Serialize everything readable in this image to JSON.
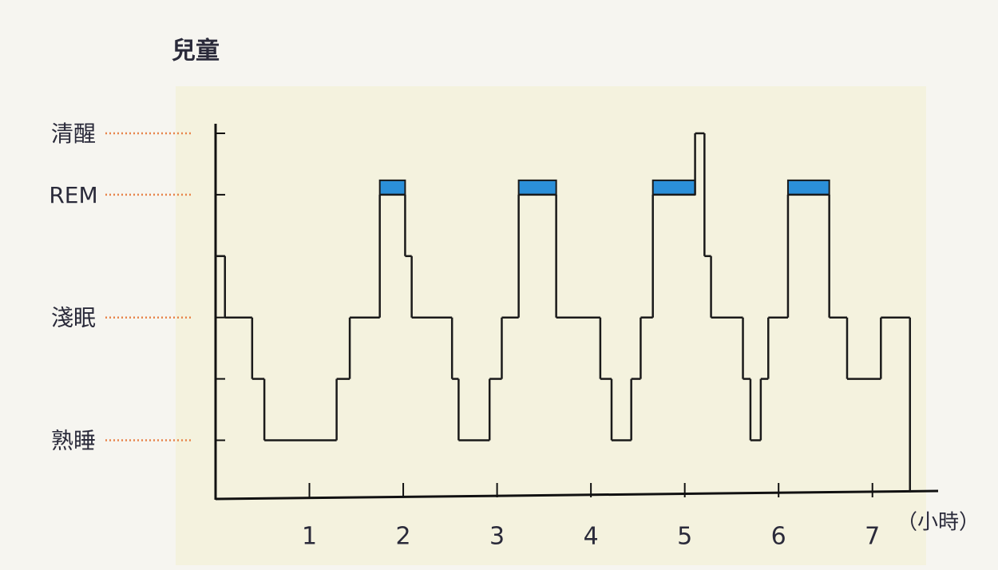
{
  "chart_data": {
    "type": "step",
    "title": "兒童",
    "x_label": "（小時）",
    "x": [
      0,
      0.1,
      0.39,
      0.52,
      1.29,
      1.43,
      1.75,
      2.02,
      2.09,
      2.52,
      2.59,
      2.92,
      3.05,
      3.23,
      3.63,
      4.1,
      4.22,
      4.43,
      4.53,
      4.66,
      5.11,
      5.21,
      5.28,
      5.62,
      5.7,
      5.81,
      5.89,
      6.1,
      6.54,
      6.73,
      7.09,
      7.4
    ],
    "values": [
      3,
      2,
      1,
      0,
      1,
      2,
      4,
      3,
      2,
      1,
      0,
      1,
      2,
      4,
      2,
      1,
      0,
      1,
      2,
      4,
      5,
      3,
      2,
      1,
      0,
      1,
      2,
      4,
      2,
      1,
      2,
      2
    ],
    "color": "#1a1a1a",
    "rem_level": 4,
    "rem_color": "#2b8fd9",
    "xlim": [
      0,
      7.7
    ],
    "ylim": [
      -0.93,
      5.13
    ],
    "xticks": [
      1,
      2,
      3,
      4,
      5,
      6,
      7
    ],
    "yticks": [
      {
        "value": 0,
        "label": "熟睡"
      },
      {
        "value": 1,
        "label": null
      },
      {
        "value": 2,
        "label": "淺眠"
      },
      {
        "value": 3,
        "label": null
      },
      {
        "value": 4,
        "label": "REM"
      },
      {
        "value": 5,
        "label": "清醒"
      }
    ],
    "leader_color": "#e8844a"
  }
}
